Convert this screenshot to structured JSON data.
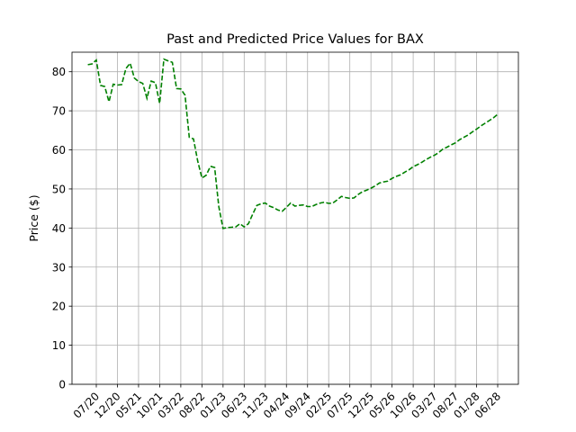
{
  "chart_data": {
    "type": "line",
    "title": "Past and Predicted Price Values for BAX",
    "xlabel": "",
    "ylabel": "Price ($)",
    "ylim": [
      0,
      85
    ],
    "y_ticks": [
      0,
      10,
      20,
      30,
      40,
      50,
      60,
      70,
      80
    ],
    "x_ticks": [
      "07/20",
      "12/20",
      "05/21",
      "10/21",
      "03/22",
      "08/22",
      "01/23",
      "06/23",
      "11/23",
      "04/24",
      "09/24",
      "02/25",
      "07/25",
      "12/25",
      "05/26",
      "10/26",
      "03/27",
      "08/27",
      "01/28",
      "06/28"
    ],
    "grid": true,
    "series": [
      {
        "color": "#008000",
        "line_style": "dashed",
        "x": [
          "2020-05",
          "2020-06",
          "2020-07",
          "2020-08",
          "2020-09",
          "2020-10",
          "2020-11",
          "2020-12",
          "2021-01",
          "2021-02",
          "2021-03",
          "2021-04",
          "2021-05",
          "2021-06",
          "2021-07",
          "2021-08",
          "2021-09",
          "2021-10",
          "2021-11",
          "2021-12",
          "2022-01",
          "2022-02",
          "2022-03",
          "2022-04",
          "2022-05",
          "2022-06",
          "2022-07",
          "2022-08",
          "2022-09",
          "2022-10",
          "2022-11",
          "2022-12",
          "2023-01",
          "2023-02",
          "2023-03",
          "2023-04",
          "2023-05",
          "2023-06",
          "2023-07",
          "2023-08",
          "2023-09",
          "2023-10",
          "2023-11",
          "2023-12",
          "2024-01",
          "2024-02",
          "2024-03",
          "2024-04",
          "2024-05",
          "2024-06",
          "2024-07",
          "2024-08",
          "2024-09",
          "2024-10",
          "2024-11",
          "2024-12",
          "2025-01",
          "2025-02",
          "2025-03",
          "2025-04",
          "2025-05",
          "2025-06",
          "2025-07",
          "2025-08",
          "2025-09",
          "2025-10",
          "2025-11",
          "2025-12",
          "2026-01",
          "2026-02",
          "2026-03",
          "2026-04",
          "2026-05",
          "2026-06",
          "2026-07",
          "2026-08",
          "2026-09",
          "2026-10",
          "2026-11",
          "2026-12",
          "2027-01",
          "2027-02",
          "2027-03",
          "2027-04",
          "2027-05",
          "2027-06",
          "2027-07",
          "2027-08",
          "2027-09",
          "2027-10",
          "2027-11",
          "2027-12",
          "2028-01",
          "2028-02",
          "2028-03",
          "2028-04",
          "2028-05",
          "2028-06"
        ],
        "y": [
          81.8,
          82.0,
          83.0,
          76.5,
          76.2,
          72.3,
          76.8,
          76.6,
          76.7,
          80.8,
          82.2,
          78.4,
          77.5,
          77.0,
          73.2,
          77.6,
          77.2,
          71.9,
          83.2,
          82.8,
          82.4,
          75.7,
          75.6,
          74.0,
          63.2,
          62.8,
          57.1,
          52.8,
          53.5,
          55.8,
          55.5,
          45.5,
          39.9,
          40.1,
          40.2,
          40.3,
          41.1,
          40.3,
          41.1,
          43.5,
          45.8,
          46.2,
          46.4,
          45.6,
          45.2,
          44.6,
          44.3,
          45.3,
          46.4,
          45.6,
          45.8,
          45.9,
          45.5,
          45.5,
          46.0,
          46.4,
          46.6,
          46.3,
          46.4,
          47.2,
          48.1,
          47.8,
          47.6,
          47.7,
          48.6,
          49.3,
          49.7,
          50.2,
          50.8,
          51.5,
          51.8,
          52.0,
          52.7,
          53.2,
          53.6,
          54.3,
          54.9,
          55.7,
          56.2,
          56.8,
          57.5,
          58.1,
          58.6,
          59.3,
          60.2,
          60.7,
          61.3,
          61.8,
          62.6,
          63.2,
          63.8,
          64.6,
          65.3,
          66.1,
          66.8,
          67.5,
          68.2,
          69.1
        ]
      }
    ]
  }
}
